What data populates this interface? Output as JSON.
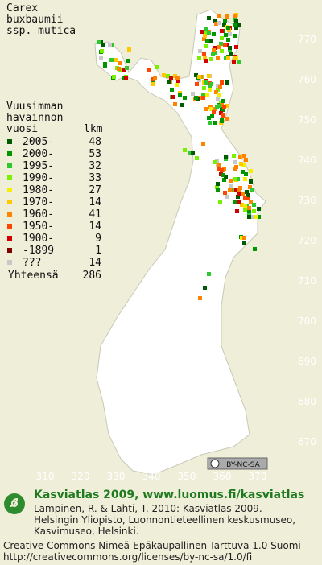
{
  "title_lines": [
    "Carex",
    "buxbaumii",
    "ssp. mutica"
  ],
  "legend": {
    "header_lines": [
      "Vuusimman",
      "havainnon"
    ],
    "col_year": "vuosi",
    "col_count": "lkm",
    "items": [
      {
        "label": "2005-",
        "count": 48,
        "color": "#005a00"
      },
      {
        "label": "2000-",
        "count": 53,
        "color": "#009600"
      },
      {
        "label": "1995-",
        "count": 32,
        "color": "#2dc82d"
      },
      {
        "label": "1990-",
        "count": 33,
        "color": "#78f000"
      },
      {
        "label": "1980-",
        "count": 27,
        "color": "#f0f000"
      },
      {
        "label": "1970-",
        "count": 14,
        "color": "#ffc800"
      },
      {
        "label": "1960-",
        "count": 41,
        "color": "#ff8200"
      },
      {
        "label": "1950-",
        "count": 14,
        "color": "#ff4600"
      },
      {
        "label": "1900-",
        "count": 9,
        "color": "#d20000"
      },
      {
        "label": "-1899",
        "count": 1,
        "color": "#800000"
      },
      {
        "label": "???",
        "count": 14,
        "color": "#c8c8c8"
      }
    ],
    "total_label": "Yhteensä",
    "total": 286
  },
  "x_labels": [
    310,
    320,
    330,
    340,
    350,
    360,
    370
  ],
  "y_labels": [
    770,
    760,
    750,
    740,
    730,
    720,
    710,
    700,
    690,
    680,
    670
  ],
  "license_badge": "BY-NC-SA",
  "footer": {
    "site": "Kasviatlas 2009, www.luomus.fi/kasviatlas",
    "citation_lines": [
      "Lampinen, R. & Lahti, T. 2010: Kasviatlas 2009. –",
      "Helsingin Yliopisto, Luonnontieteellinen keskusmuseo,",
      "Kasvimuseo, Helsinki."
    ],
    "license_lines": [
      "Creative Commons Nimeä-Epäkaupallinen-Tarttuva 1.0 Suomi",
      "http://creativecommons.org/licenses/by-nc-sa/1.0/fi"
    ]
  }
}
